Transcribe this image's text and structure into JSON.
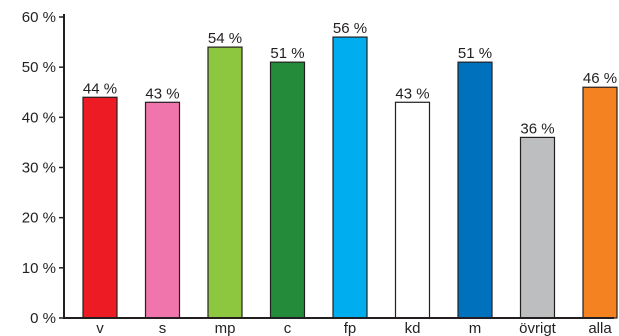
{
  "chart_data": {
    "type": "bar",
    "categories": [
      "v",
      "s",
      "mp",
      "c",
      "fp",
      "kd",
      "m",
      "övrigt",
      "alla"
    ],
    "values": [
      44,
      43,
      54,
      51,
      56,
      43,
      51,
      36,
      46
    ],
    "data_labels": [
      "44 %",
      "43 %",
      "54 %",
      "51 %",
      "56 %",
      "43 %",
      "51 %",
      "36 %",
      "46 %"
    ],
    "colors": [
      "#ed1c24",
      "#f075ac",
      "#8dc63f",
      "#238b3a",
      "#00aeef",
      "#ffffff",
      "#0071bc",
      "#bcbec0",
      "#f58220"
    ],
    "y_ticks": [
      0,
      10,
      20,
      30,
      40,
      50,
      60
    ],
    "y_tick_labels": [
      "0 %",
      "10 %",
      "20 %",
      "30 %",
      "40 %",
      "50 %",
      "60 %"
    ],
    "ylim": [
      0,
      60
    ],
    "title": "",
    "xlabel": "",
    "ylabel": "",
    "grid": false,
    "legend": "none"
  }
}
